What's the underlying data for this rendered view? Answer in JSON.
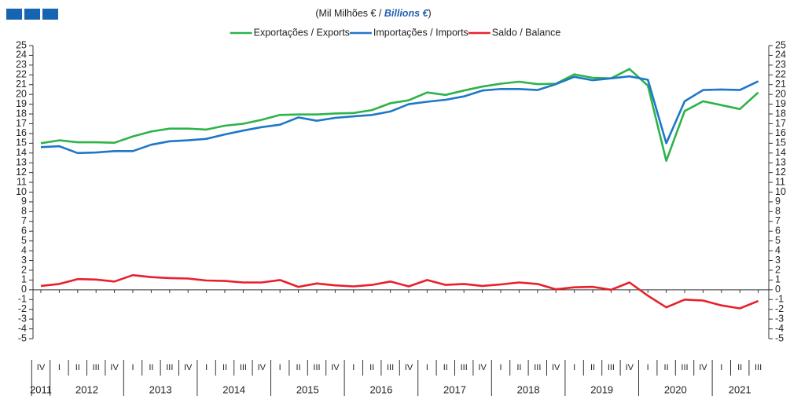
{
  "chart_data": {
    "type": "line",
    "title": [
      "(Mil Milhões € / ",
      "Billions €",
      ")"
    ],
    "categories": [
      "IV",
      "I",
      "II",
      "III",
      "IV",
      "I",
      "II",
      "III",
      "IV",
      "I",
      "II",
      "III",
      "IV",
      "I",
      "II",
      "III",
      "IV",
      "I",
      "II",
      "III",
      "IV",
      "I",
      "II",
      "III",
      "IV",
      "I",
      "II",
      "III",
      "IV",
      "I",
      "II",
      "III",
      "IV",
      "I",
      "II",
      "III",
      "IV",
      "I",
      "II",
      "III"
    ],
    "years": [
      "2011",
      "2012",
      "2013",
      "2014",
      "2015",
      "2016",
      "2017",
      "2018",
      "2019",
      "2020",
      "2021"
    ],
    "series": [
      {
        "name": "Exportações / Exports",
        "color": "#2db34a",
        "values": [
          15.0,
          15.3,
          15.1,
          15.1,
          15.05,
          15.7,
          16.2,
          16.5,
          16.5,
          16.4,
          16.8,
          17.0,
          17.4,
          17.9,
          17.95,
          17.95,
          18.05,
          18.1,
          18.4,
          19.1,
          19.4,
          20.2,
          19.95,
          20.4,
          20.8,
          21.1,
          21.3,
          21.05,
          21.1,
          22.05,
          21.7,
          21.65,
          22.6,
          20.9,
          13.2,
          18.3,
          19.3,
          18.9,
          18.5,
          20.2
        ]
      },
      {
        "name": "Importações / Imports",
        "color": "#1f77c8",
        "values": [
          14.6,
          14.7,
          14.0,
          14.05,
          14.2,
          14.2,
          14.85,
          15.2,
          15.3,
          15.45,
          15.9,
          16.3,
          16.65,
          16.9,
          17.65,
          17.3,
          17.6,
          17.75,
          17.9,
          18.25,
          19.0,
          19.25,
          19.45,
          19.8,
          20.4,
          20.55,
          20.55,
          20.45,
          21.05,
          21.8,
          21.45,
          21.65,
          21.85,
          21.5,
          15.0,
          19.3,
          20.45,
          20.5,
          20.45,
          21.35
        ]
      },
      {
        "name": "Saldo / Balance",
        "color": "#e8202a",
        "values": [
          0.4,
          0.6,
          1.1,
          1.05,
          0.85,
          1.5,
          1.3,
          1.2,
          1.15,
          0.95,
          0.9,
          0.75,
          0.75,
          1.0,
          0.3,
          0.65,
          0.45,
          0.35,
          0.5,
          0.85,
          0.35,
          1.0,
          0.5,
          0.6,
          0.4,
          0.55,
          0.75,
          0.6,
          0.05,
          0.25,
          0.3,
          0.0,
          0.75,
          -0.6,
          -1.8,
          -1.0,
          -1.1,
          -1.6,
          -1.9,
          -1.15
        ]
      }
    ],
    "ylim": [
      -5,
      25
    ],
    "yticks": [
      -5,
      -4,
      -3,
      -2,
      -1,
      0,
      1,
      2,
      3,
      4,
      5,
      6,
      7,
      8,
      9,
      10,
      11,
      12,
      13,
      14,
      15,
      16,
      17,
      18,
      19,
      20,
      21,
      22,
      23,
      24,
      25
    ]
  }
}
